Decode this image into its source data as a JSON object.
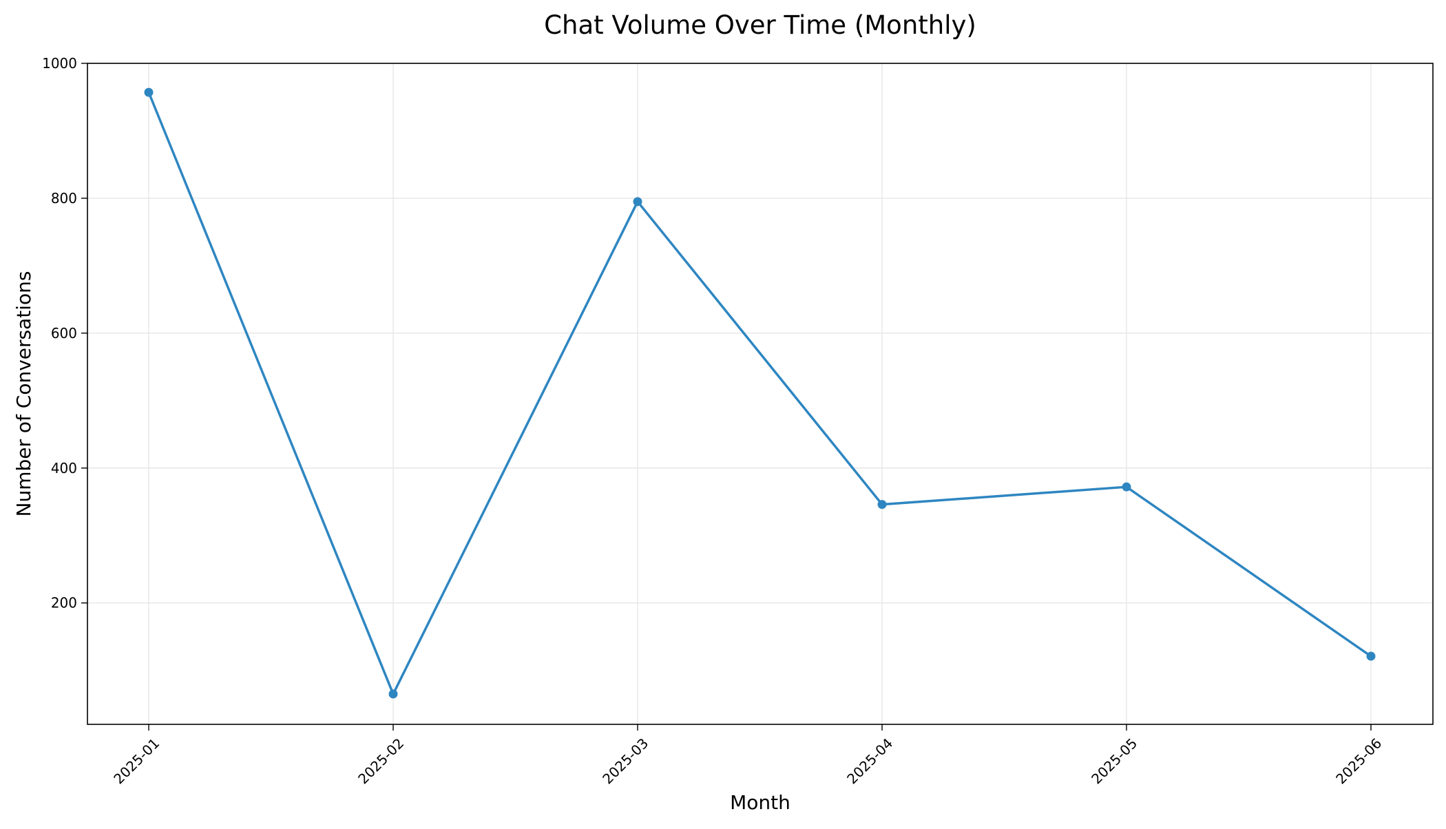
{
  "chart_data": {
    "type": "line",
    "title": "Chat Volume Over Time (Monthly)",
    "xlabel": "Month",
    "ylabel": "Number of Conversations",
    "categories": [
      "2025-01",
      "2025-02",
      "2025-03",
      "2025-04",
      "2025-05",
      "2025-06"
    ],
    "series": [
      {
        "values": [
          957,
          65,
          795,
          346,
          372,
          121
        ],
        "color": "#2e86c1"
      }
    ],
    "ylim": [
      20,
      1000
    ],
    "yticks": [
      200,
      400,
      600,
      800,
      1000
    ],
    "grid": true,
    "legend": "none"
  }
}
